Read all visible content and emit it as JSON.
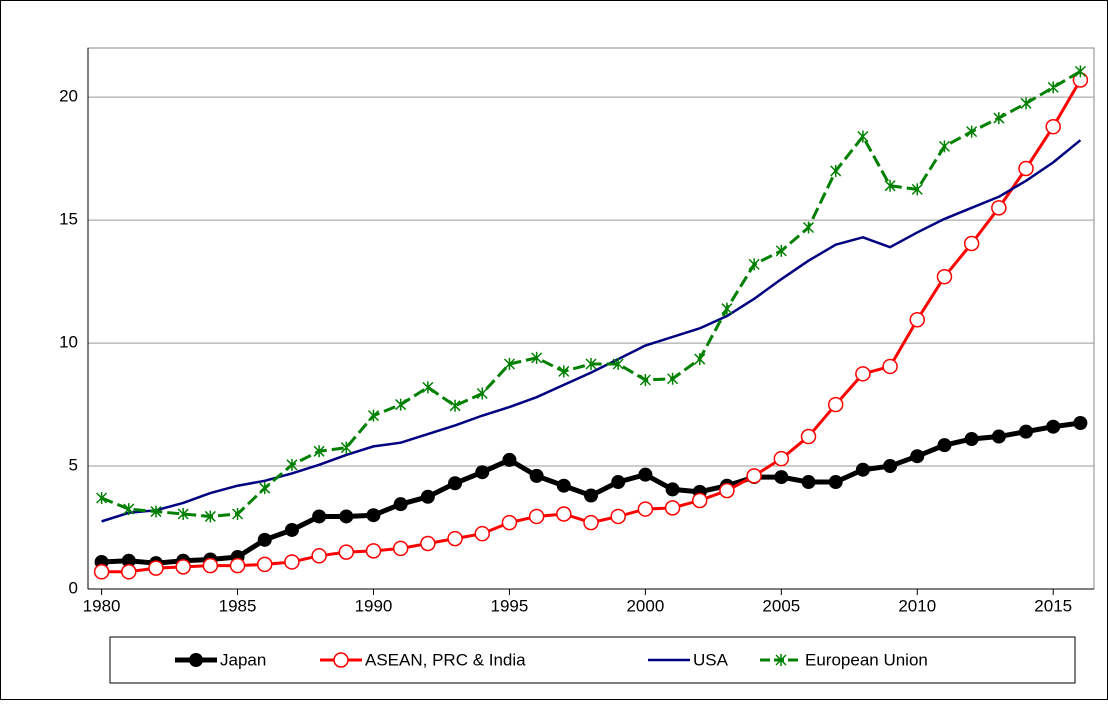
{
  "chart_data": {
    "type": "line",
    "x": [
      1980,
      1981,
      1982,
      1983,
      1984,
      1985,
      1986,
      1987,
      1988,
      1989,
      1990,
      1991,
      1992,
      1993,
      1994,
      1995,
      1996,
      1997,
      1998,
      1999,
      2000,
      2001,
      2002,
      2003,
      2004,
      2005,
      2006,
      2007,
      2008,
      2009,
      2010,
      2011,
      2012,
      2013,
      2014,
      2015,
      2016
    ],
    "series": [
      {
        "name": "Japan",
        "color": "#000000",
        "marker": "filled-circle",
        "line_width": 5,
        "dashed": false,
        "values": [
          1.1,
          1.15,
          1.05,
          1.15,
          1.2,
          1.3,
          2.0,
          2.4,
          2.95,
          2.95,
          3.0,
          3.45,
          3.75,
          4.3,
          4.75,
          5.25,
          4.6,
          4.2,
          3.8,
          4.35,
          4.65,
          4.05,
          3.95,
          4.2,
          4.55,
          4.55,
          4.35,
          4.35,
          4.85,
          5.0,
          5.4,
          5.85,
          6.1,
          6.2,
          6.4,
          6.6,
          6.75
        ]
      },
      {
        "name": "ASEAN, PRC & India",
        "color": "#ff0000",
        "marker": "open-circle",
        "line_width": 3,
        "dashed": false,
        "values": [
          0.7,
          0.7,
          0.85,
          0.9,
          0.95,
          0.95,
          1.0,
          1.1,
          1.35,
          1.5,
          1.55,
          1.65,
          1.85,
          2.05,
          2.25,
          2.7,
          2.95,
          3.05,
          2.7,
          2.95,
          3.25,
          3.3,
          3.6,
          4.0,
          4.6,
          5.3,
          6.2,
          7.5,
          8.75,
          9.05,
          10.95,
          12.7,
          14.05,
          15.5,
          17.1,
          18.8,
          20.7
        ]
      },
      {
        "name": "USA",
        "color": "#000080",
        "marker": "none",
        "line_width": 2.5,
        "dashed": false,
        "values": [
          2.75,
          3.1,
          3.2,
          3.5,
          3.9,
          4.2,
          4.4,
          4.7,
          5.05,
          5.45,
          5.8,
          5.95,
          6.3,
          6.65,
          7.05,
          7.4,
          7.8,
          8.3,
          8.8,
          9.35,
          9.9,
          10.25,
          10.6,
          11.1,
          11.8,
          12.6,
          13.35,
          14.0,
          14.3,
          13.9,
          14.5,
          15.05,
          15.5,
          15.95,
          16.6,
          17.35,
          18.25
        ]
      },
      {
        "name": "European Union",
        "color": "#008000",
        "marker": "star",
        "line_width": 3,
        "dashed": true,
        "values": [
          3.7,
          3.25,
          3.15,
          3.05,
          2.95,
          3.05,
          4.1,
          5.05,
          5.6,
          5.75,
          7.05,
          7.5,
          8.2,
          7.45,
          7.95,
          9.15,
          9.4,
          8.85,
          9.15,
          9.15,
          8.5,
          8.55,
          9.35,
          11.4,
          13.2,
          13.75,
          14.7,
          17.0,
          18.4,
          16.4,
          16.25,
          18.0,
          18.6,
          19.15,
          19.75,
          20.4,
          21.05
        ]
      }
    ],
    "xlim": [
      1979.5,
      2016.5
    ],
    "xticks": [
      1980,
      1985,
      1990,
      1995,
      2000,
      2005,
      2010,
      2015
    ],
    "ylim": [
      0,
      22
    ],
    "yticks": [
      0,
      5,
      10,
      15,
      20
    ],
    "grid": true,
    "legend": "bottom"
  }
}
